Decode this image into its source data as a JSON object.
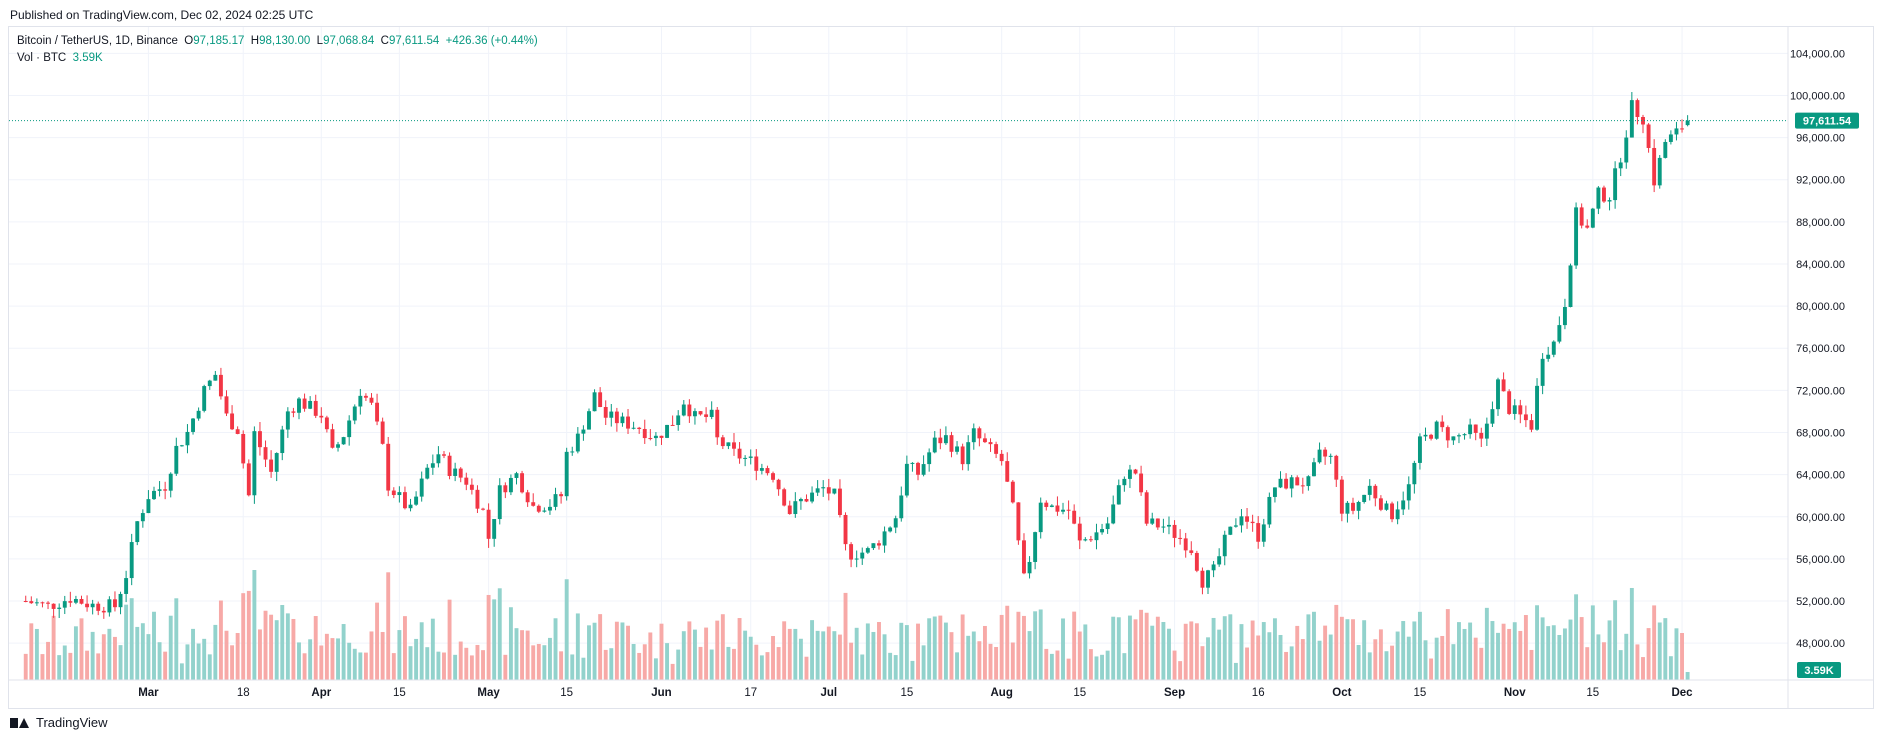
{
  "header": {
    "published": "Published on TradingView.com, Dec 02, 2024 02:25 UTC"
  },
  "legend": {
    "symbol": "Bitcoin / TetherUS, 1D, Binance",
    "o_label": "O",
    "o_value": "97,185.17",
    "h_label": "H",
    "h_value": "98,130.00",
    "l_label": "L",
    "l_value": "97,068.84",
    "c_label": "C",
    "c_value": "97,611.54",
    "change": "+426.36 (+0.44%)",
    "vol_label": "Vol · BTC",
    "vol_value": "3.59K"
  },
  "footer": {
    "brand": "TradingView"
  },
  "colors": {
    "up": "#089981",
    "down": "#f23645",
    "vol_up": "#92d2cc",
    "vol_down": "#f7a9a7",
    "grid": "#f0f3fa"
  },
  "chart_data": {
    "type": "candlestick",
    "symbol": "Bitcoin / TetherUS",
    "interval": "1D",
    "exchange": "Binance",
    "y_axis": {
      "ticks": [
        "104,000.00",
        "100,000.00",
        "96,000.00",
        "92,000.00",
        "88,000.00",
        "84,000.00",
        "80,000.00",
        "76,000.00",
        "72,000.00",
        "68,000.00",
        "64,000.00",
        "60,000.00",
        "56,000.00",
        "52,000.00",
        "48,000.00"
      ],
      "range": [
        44500,
        106500
      ],
      "position": "right"
    },
    "x_axis": {
      "tick_labels": [
        "Mar",
        "18",
        "Apr",
        "15",
        "May",
        "15",
        "Jun",
        "17",
        "Jul",
        "15",
        "Aug",
        "15",
        "Sep",
        "16",
        "Oct",
        "15",
        "Nov",
        "15",
        "Dec"
      ],
      "tick_dates": [
        "2024-03-01",
        "2024-03-18",
        "2024-04-01",
        "2024-04-15",
        "2024-05-01",
        "2024-05-15",
        "2024-06-01",
        "2024-06-17",
        "2024-07-01",
        "2024-07-15",
        "2024-08-01",
        "2024-08-15",
        "2024-09-01",
        "2024-09-16",
        "2024-10-01",
        "2024-10-15",
        "2024-11-01",
        "2024-11-15",
        "2024-12-01"
      ],
      "range": [
        "2024-02-05",
        "2024-12-20"
      ]
    },
    "last_price": {
      "value": 97611.54,
      "label": "97,611.54"
    },
    "last_volume_label": "3.59K",
    "grid": true,
    "close_series": [
      [
        "2024-02-08",
        52000
      ],
      [
        "2024-02-12",
        51500
      ],
      [
        "2024-02-16",
        52300
      ],
      [
        "2024-02-20",
        51600
      ],
      [
        "2024-02-24",
        51500
      ],
      [
        "2024-02-26",
        54500
      ],
      [
        "2024-02-28",
        59500
      ],
      [
        "2024-03-01",
        62000
      ],
      [
        "2024-03-04",
        63000
      ],
      [
        "2024-03-06",
        66500
      ],
      [
        "2024-03-08",
        68000
      ],
      [
        "2024-03-11",
        72000
      ],
      [
        "2024-03-13",
        73500
      ],
      [
        "2024-03-15",
        69500
      ],
      [
        "2024-03-17",
        68300
      ],
      [
        "2024-03-19",
        62000
      ],
      [
        "2024-03-20",
        67900
      ],
      [
        "2024-03-23",
        64200
      ],
      [
        "2024-03-26",
        70000
      ],
      [
        "2024-03-28",
        71000
      ],
      [
        "2024-04-01",
        69700
      ],
      [
        "2024-04-03",
        66000
      ],
      [
        "2024-04-05",
        67800
      ],
      [
        "2024-04-08",
        72000
      ],
      [
        "2024-04-10",
        70500
      ],
      [
        "2024-04-12",
        66500
      ],
      [
        "2024-04-13",
        63000
      ],
      [
        "2024-04-17",
        60500
      ],
      [
        "2024-04-20",
        64500
      ],
      [
        "2024-04-22",
        66000
      ],
      [
        "2024-04-24",
        64500
      ],
      [
        "2024-04-27",
        63400
      ],
      [
        "2024-04-30",
        60500
      ],
      [
        "2024-05-01",
        58000
      ],
      [
        "2024-05-03",
        62500
      ],
      [
        "2024-05-06",
        64000
      ],
      [
        "2024-05-09",
        61000
      ],
      [
        "2024-05-12",
        61200
      ],
      [
        "2024-05-14",
        62000
      ],
      [
        "2024-05-15",
        66000
      ],
      [
        "2024-05-17",
        67500
      ],
      [
        "2024-05-20",
        71500
      ],
      [
        "2024-05-22",
        69500
      ],
      [
        "2024-05-25",
        69000
      ],
      [
        "2024-05-28",
        68500
      ],
      [
        "2024-05-31",
        67500
      ],
      [
        "2024-06-03",
        69000
      ],
      [
        "2024-06-05",
        71000
      ],
      [
        "2024-06-07",
        69400
      ],
      [
        "2024-06-10",
        69500
      ],
      [
        "2024-06-11",
        67300
      ],
      [
        "2024-06-14",
        66000
      ],
      [
        "2024-06-18",
        65000
      ],
      [
        "2024-06-21",
        64000
      ],
      [
        "2024-06-24",
        60500
      ],
      [
        "2024-06-26",
        61500
      ],
      [
        "2024-06-30",
        62700
      ],
      [
        "2024-07-02",
        62000
      ],
      [
        "2024-07-04",
        57000
      ],
      [
        "2024-07-05",
        56500
      ],
      [
        "2024-07-08",
        56700
      ],
      [
        "2024-07-10",
        57800
      ],
      [
        "2024-07-13",
        60000
      ],
      [
        "2024-07-15",
        64800
      ],
      [
        "2024-07-17",
        64100
      ],
      [
        "2024-07-20",
        67100
      ],
      [
        "2024-07-22",
        67500
      ],
      [
        "2024-07-25",
        65500
      ],
      [
        "2024-07-27",
        67900
      ],
      [
        "2024-07-29",
        66800
      ],
      [
        "2024-08-01",
        65300
      ],
      [
        "2024-08-03",
        60700
      ],
      [
        "2024-08-05",
        54000
      ],
      [
        "2024-08-06",
        56000
      ],
      [
        "2024-08-08",
        61700
      ],
      [
        "2024-08-10",
        60900
      ],
      [
        "2024-08-13",
        60600
      ],
      [
        "2024-08-15",
        57500
      ],
      [
        "2024-08-18",
        58500
      ],
      [
        "2024-08-20",
        59400
      ],
      [
        "2024-08-23",
        64100
      ],
      [
        "2024-08-25",
        64200
      ],
      [
        "2024-08-27",
        59400
      ],
      [
        "2024-08-30",
        59100
      ],
      [
        "2024-09-02",
        58000
      ],
      [
        "2024-09-04",
        57000
      ],
      [
        "2024-09-06",
        53950
      ],
      [
        "2024-09-08",
        54800
      ],
      [
        "2024-09-10",
        57600
      ],
      [
        "2024-09-13",
        60500
      ],
      [
        "2024-09-16",
        58200
      ],
      [
        "2024-09-19",
        62900
      ],
      [
        "2024-09-22",
        63300
      ],
      [
        "2024-09-25",
        63200
      ],
      [
        "2024-09-27",
        65800
      ],
      [
        "2024-09-29",
        65600
      ],
      [
        "2024-10-01",
        60800
      ],
      [
        "2024-10-03",
        60700
      ],
      [
        "2024-10-06",
        62800
      ],
      [
        "2024-10-09",
        60600
      ],
      [
        "2024-10-10",
        60300
      ],
      [
        "2024-10-13",
        62800
      ],
      [
        "2024-10-15",
        67000
      ],
      [
        "2024-10-18",
        68500
      ],
      [
        "2024-10-21",
        67400
      ],
      [
        "2024-10-24",
        68100
      ],
      [
        "2024-10-26",
        67000
      ],
      [
        "2024-10-29",
        72700
      ],
      [
        "2024-10-31",
        70300
      ],
      [
        "2024-11-02",
        69500
      ],
      [
        "2024-11-04",
        68700
      ],
      [
        "2024-11-06",
        75600
      ],
      [
        "2024-11-08",
        76500
      ],
      [
        "2024-11-10",
        80400
      ],
      [
        "2024-11-12",
        88700
      ],
      [
        "2024-11-14",
        87300
      ],
      [
        "2024-11-16",
        90600
      ],
      [
        "2024-11-18",
        90500
      ],
      [
        "2024-11-20",
        94300
      ],
      [
        "2024-11-22",
        98900
      ],
      [
        "2024-11-24",
        97900
      ],
      [
        "2024-11-26",
        91900
      ],
      [
        "2024-11-28",
        95600
      ],
      [
        "2024-11-30",
        96400
      ],
      [
        "2024-12-02",
        97611.54
      ]
    ]
  }
}
